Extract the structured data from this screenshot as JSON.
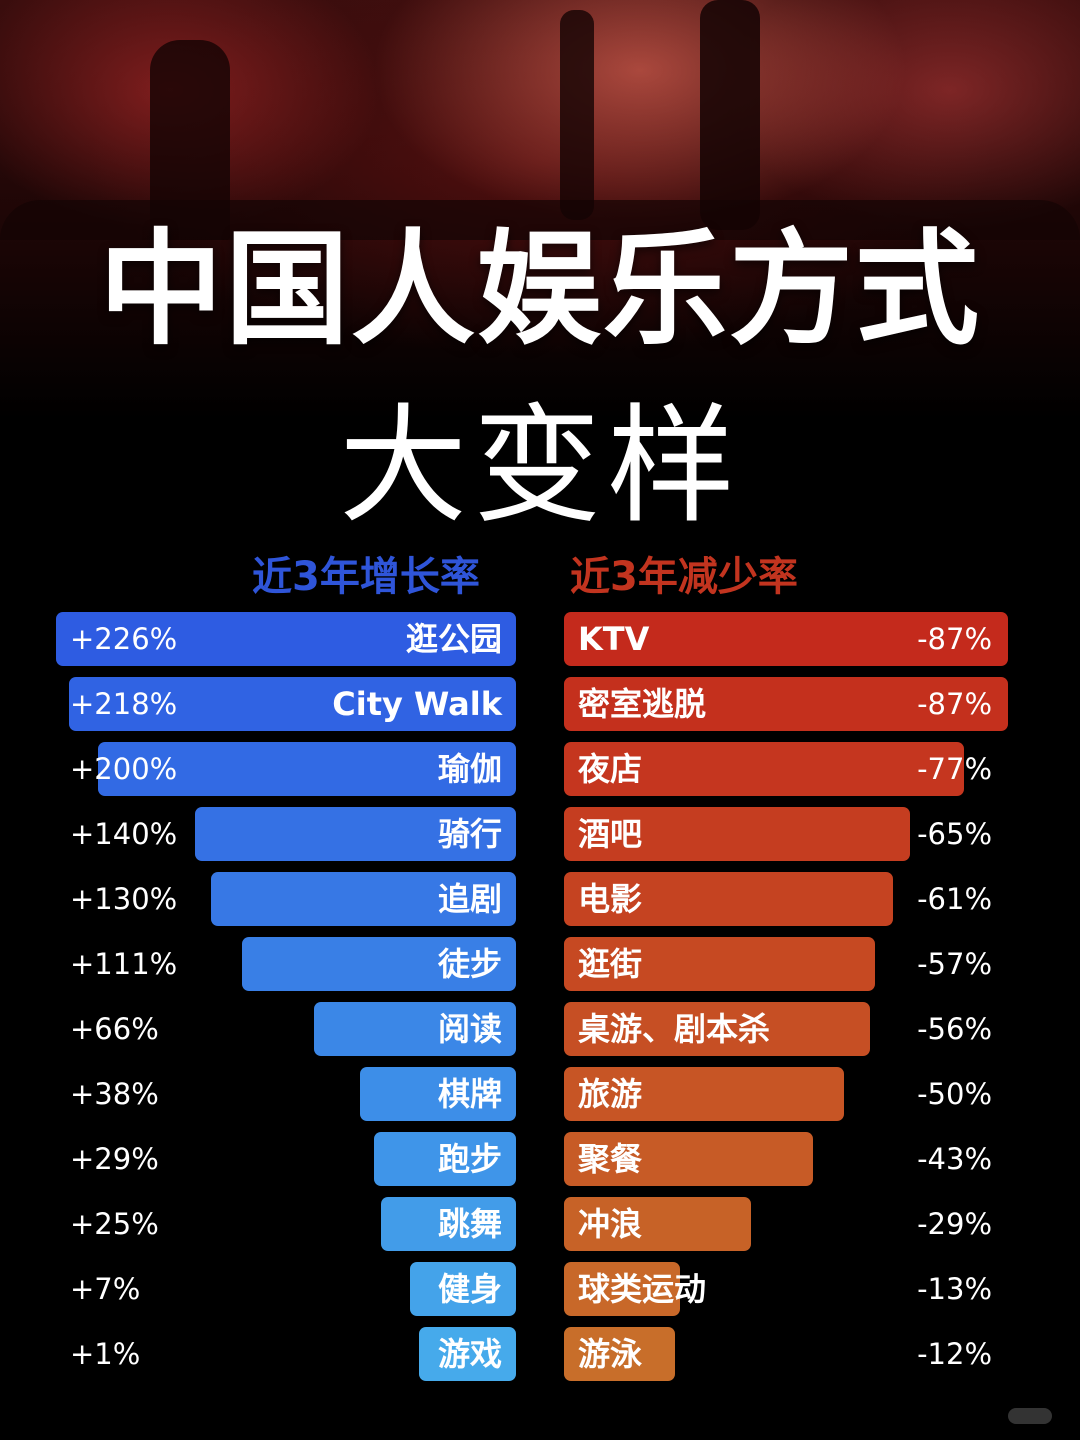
{
  "title": "中国人娱乐方式",
  "subtitle": "大变样",
  "chart_data": {
    "type": "bar",
    "orientation": "horizontal",
    "panels": [
      {
        "title": "近3年增长率",
        "color": "#2f5fe0",
        "categories": [
          "逛公园",
          "City Walk",
          "瑜伽",
          "骑行",
          "追剧",
          "徒步",
          "阅读",
          "棋牌",
          "跑步",
          "跳舞",
          "健身",
          "游戏"
        ],
        "values": [
          226,
          218,
          200,
          140,
          130,
          111,
          66,
          38,
          29,
          25,
          7,
          1
        ],
        "labels": [
          "+226%",
          "+218%",
          "+200%",
          "+140%",
          "+130%",
          "+111%",
          "+66%",
          "+38%",
          "+29%",
          "+25%",
          "+7%",
          "+1%"
        ],
        "unit": "%"
      },
      {
        "title": "近3年减少率",
        "color": "#c2341f",
        "categories": [
          "KTV",
          "密室逃脱",
          "夜店",
          "酒吧",
          "电影",
          "逛街",
          "桌游、剧本杀",
          "旅游",
          "聚餐",
          "冲浪",
          "球类运动",
          "游泳"
        ],
        "values": [
          -87,
          -87,
          -77,
          -65,
          -61,
          -57,
          -56,
          -50,
          -43,
          -29,
          -13,
          -12
        ],
        "labels": [
          "-87%",
          "-87%",
          "-77%",
          "-65%",
          "-61%",
          "-57%",
          "-56%",
          "-50%",
          "-43%",
          "-29%",
          "-13%",
          "-12%"
        ],
        "unit": "%"
      }
    ]
  }
}
